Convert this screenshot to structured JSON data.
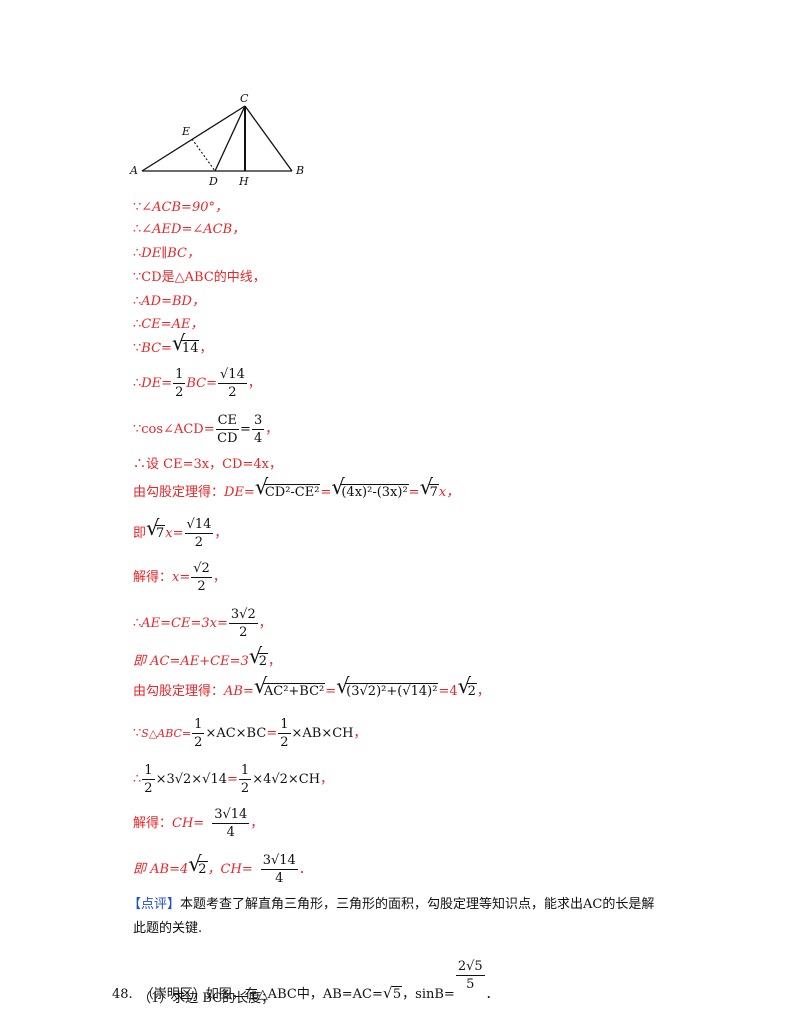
{
  "figure": {
    "labels": {
      "A": "A",
      "B": "B",
      "C": "C",
      "D": "D",
      "E": "E",
      "H": "H"
    }
  },
  "steps": {
    "s1": {
      "sym": "∵",
      "text": "∠ACB=90°，"
    },
    "s2": {
      "sym": "∴",
      "text": "∠AED=∠ACB，"
    },
    "s3": {
      "sym": "∴",
      "text": "DE∥BC，"
    },
    "s4": {
      "sym": "∵",
      "text": "CD是△ABC的中线，"
    },
    "s5": {
      "sym": "∴",
      "text": "AD=BD，"
    },
    "s6": {
      "sym": "∴",
      "text": "CE=AE，"
    },
    "s7": {
      "sym": "∵",
      "pre": "BC=",
      "rad": "14",
      "post": "，"
    },
    "s8": {
      "sym": "∴",
      "pre": "DE=",
      "f1n": "1",
      "f1d": "2",
      "mid": "BC=",
      "f2n": "√14",
      "f2d": "2",
      "post": "，"
    },
    "s9": {
      "sym": "∵",
      "pre": "cos∠ACD=",
      "f1n": "CE",
      "f1d": "CD",
      "eq": "=",
      "f2n": "3",
      "f2d": "4",
      "post": "，"
    },
    "s10": {
      "sym": "∴",
      "text": "设 CE=3x，CD=4x，"
    },
    "s11": {
      "pre": "由勾股定理得：",
      "lhs": "DE=",
      "r1": "CD²-CE²",
      "eq1": "=",
      "r2": "(4x)²-(3x)²",
      "eq2": "=",
      "r3": "7",
      "post": "x，"
    },
    "s12": {
      "pre": "即",
      "r": "7",
      "mid": "x=",
      "fn": "√14",
      "fd": "2",
      "post": "，"
    },
    "s13": {
      "pre": "解得：",
      "mid": "x=",
      "fn": "√2",
      "fd": "2",
      "post": "，"
    },
    "s14": {
      "sym": "∴",
      "pre": "AE=CE=3x=",
      "fn": "3√2",
      "fd": "2",
      "post": "，"
    },
    "s15": {
      "pre": "即 AC=AE+CE=3",
      "r": "2",
      "post": "，"
    },
    "s16": {
      "pre": "由勾股定理得：",
      "lhs": "AB=",
      "r1": "AC²+BC²",
      "eq1": "=",
      "r2": "(3√2)²+(√14)²",
      "eq2": "=4",
      "r3": "2",
      "post": "，"
    },
    "s17": {
      "sym": "∵",
      "pre": "S△ABC=",
      "f1n": "1",
      "f1d": "2",
      "mid1": "×AC×BC",
      "eq": "=",
      "f2n": "1",
      "f2d": "2",
      "mid2": "×AB×CH",
      "post": "，"
    },
    "s18": {
      "sym": "∴",
      "f1n": "1",
      "f1d": "2",
      "mid1": "×3√2×√14",
      "eq": "=",
      "f2n": "1",
      "f2d": "2",
      "mid2": "×4√2×CH",
      "post": "，"
    },
    "s19": {
      "pre": "解得：",
      "mid": "CH=",
      "fn": "3√14",
      "fd": "4",
      "post": "，"
    },
    "s20": {
      "pre": "即 AB=4",
      "r": "2",
      "mid": "，CH=",
      "fn": "3√14",
      "fd": "4",
      "post": "．"
    }
  },
  "comment": {
    "tag": "【点评】",
    "line1": "本题考查了解直角三角形，三角形的面积，勾股定理等知识点，能求出AC的长是解",
    "line2": "此题的关键."
  },
  "problem48": {
    "num": "48.",
    "text": "（崇明区）如图，在△ABC中，AB=AC=",
    "rad": "5",
    "mid": "，sinB=",
    "fn": "2√5",
    "fd": "5",
    "post": "．",
    "q1": "（1）求边 BC的长度；"
  }
}
